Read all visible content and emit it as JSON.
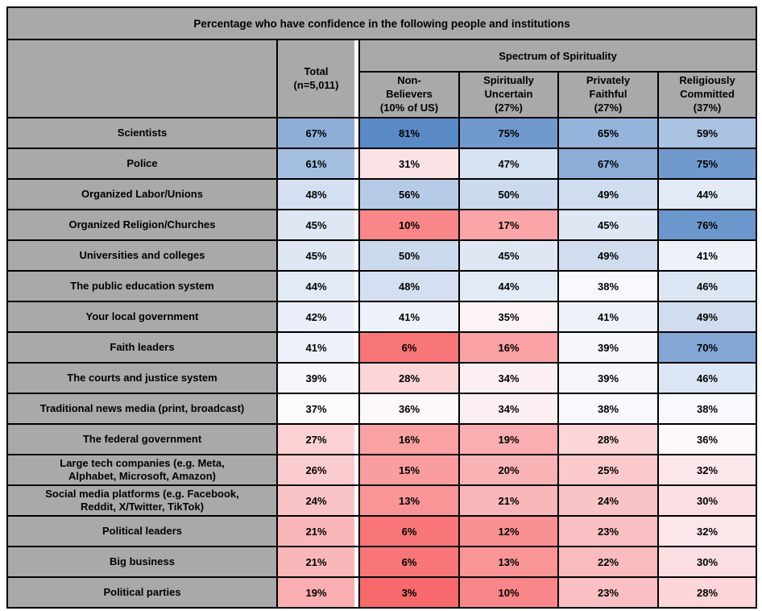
{
  "chart_data": {
    "type": "heatmap",
    "title": "Percentage who have confidence in the following people and institutions",
    "group_header": "Spectrum of Spirituality",
    "columns": [
      "Total\n(n=5,011)",
      "Non-\nBelievers\n(10% of US)",
      "Spiritually\nUncertain\n(27%)",
      "Privately\nFaithful\n(27%)",
      "Religiously\nCommitted\n(37%)"
    ],
    "rows": [
      {
        "label": "Scientists",
        "values": [
          67,
          81,
          75,
          65,
          59
        ]
      },
      {
        "label": "Police",
        "values": [
          61,
          31,
          47,
          67,
          75
        ]
      },
      {
        "label": "Organized Labor/Unions",
        "values": [
          48,
          56,
          50,
          49,
          44
        ]
      },
      {
        "label": "Organized Religion/Churches",
        "values": [
          45,
          10,
          17,
          45,
          76
        ]
      },
      {
        "label": "Universities and colleges",
        "values": [
          45,
          50,
          45,
          49,
          41
        ]
      },
      {
        "label": "The public education system",
        "values": [
          44,
          48,
          44,
          38,
          46
        ]
      },
      {
        "label": "Your local government",
        "values": [
          42,
          41,
          35,
          41,
          49
        ]
      },
      {
        "label": "Faith leaders",
        "values": [
          41,
          6,
          16,
          39,
          70
        ]
      },
      {
        "label": "The courts and justice system",
        "values": [
          39,
          28,
          34,
          39,
          46
        ]
      },
      {
        "label": "Traditional news media (print, broadcast)",
        "values": [
          37,
          36,
          34,
          38,
          38
        ]
      },
      {
        "label": "The federal government",
        "values": [
          27,
          16,
          19,
          28,
          36
        ]
      },
      {
        "label": "Large tech companies (e.g. Meta,\nAlphabet, Microsoft, Amazon)",
        "values": [
          26,
          15,
          20,
          25,
          32
        ]
      },
      {
        "label": "Social media platforms (e.g. Facebook,\nReddit, X/Twitter, TikTok)",
        "values": [
          24,
          13,
          21,
          24,
          30
        ]
      },
      {
        "label": "Political leaders",
        "values": [
          21,
          6,
          12,
          23,
          32
        ]
      },
      {
        "label": "Big business",
        "values": [
          21,
          6,
          13,
          22,
          30
        ]
      },
      {
        "label": "Political parties",
        "values": [
          19,
          3,
          10,
          23,
          28
        ]
      }
    ],
    "value_suffix": "%",
    "color_scale": {
      "min_value": 3,
      "mid_value": 37,
      "max_value": 81,
      "min_color": "#F8696B",
      "mid_color": "#FCFCFF",
      "max_color": "#5A8AC6"
    },
    "header_bg": "#A9A9A9",
    "border_color": "#000000",
    "text_color": "#000000",
    "page_bg": "#FFFFFF",
    "legend_position": "none",
    "grid": true
  }
}
